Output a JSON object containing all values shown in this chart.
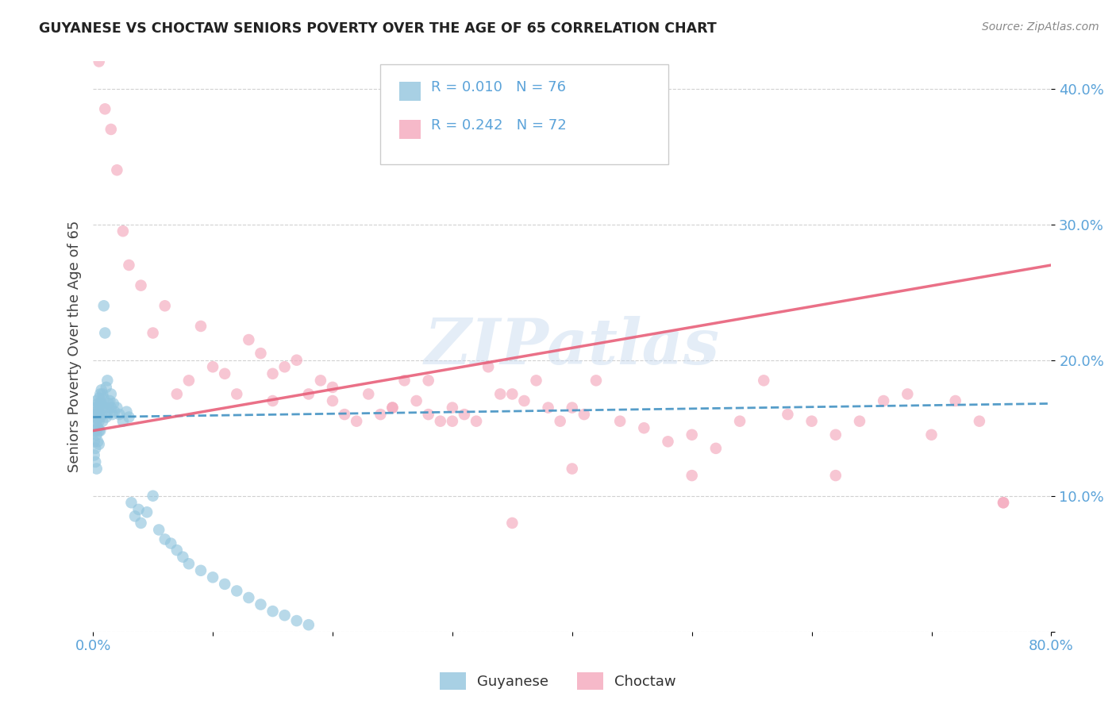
{
  "title": "GUYANESE VS CHOCTAW SENIORS POVERTY OVER THE AGE OF 65 CORRELATION CHART",
  "source": "Source: ZipAtlas.com",
  "ylabel": "Seniors Poverty Over the Age of 65",
  "legend_labels": [
    "Guyanese",
    "Choctaw"
  ],
  "legend_r": [
    "R = 0.010",
    "R = 0.242"
  ],
  "legend_n": [
    "N = 76",
    "N = 72"
  ],
  "blue_color": "#92c5de",
  "pink_color": "#f4a8bc",
  "blue_line_color": "#4393c3",
  "pink_line_color": "#e8607a",
  "axis_label_color": "#5ba3d9",
  "watermark": "ZIPatlas",
  "xmin": 0.0,
  "xmax": 0.8,
  "ymin": 0.0,
  "ymax": 0.42,
  "guyanese_x": [
    0.001,
    0.001,
    0.001,
    0.001,
    0.001,
    0.002,
    0.002,
    0.002,
    0.002,
    0.002,
    0.003,
    0.003,
    0.003,
    0.003,
    0.003,
    0.004,
    0.004,
    0.004,
    0.004,
    0.005,
    0.005,
    0.005,
    0.005,
    0.005,
    0.006,
    0.006,
    0.006,
    0.006,
    0.007,
    0.007,
    0.007,
    0.008,
    0.008,
    0.008,
    0.009,
    0.009,
    0.01,
    0.01,
    0.011,
    0.011,
    0.012,
    0.012,
    0.013,
    0.014,
    0.015,
    0.015,
    0.016,
    0.017,
    0.018,
    0.02,
    0.022,
    0.025,
    0.028,
    0.03,
    0.032,
    0.035,
    0.038,
    0.04,
    0.045,
    0.05,
    0.055,
    0.06,
    0.065,
    0.07,
    0.075,
    0.08,
    0.09,
    0.1,
    0.11,
    0.12,
    0.13,
    0.14,
    0.15,
    0.16,
    0.17,
    0.18
  ],
  "guyanese_y": [
    0.16,
    0.155,
    0.148,
    0.14,
    0.13,
    0.165,
    0.158,
    0.148,
    0.135,
    0.125,
    0.17,
    0.162,
    0.155,
    0.145,
    0.12,
    0.168,
    0.16,
    0.15,
    0.14,
    0.172,
    0.165,
    0.155,
    0.148,
    0.138,
    0.175,
    0.168,
    0.158,
    0.148,
    0.178,
    0.168,
    0.16,
    0.175,
    0.165,
    0.155,
    0.24,
    0.172,
    0.22,
    0.165,
    0.18,
    0.158,
    0.185,
    0.162,
    0.168,
    0.17,
    0.165,
    0.175,
    0.16,
    0.168,
    0.162,
    0.165,
    0.16,
    0.155,
    0.162,
    0.158,
    0.095,
    0.085,
    0.09,
    0.08,
    0.088,
    0.1,
    0.075,
    0.068,
    0.065,
    0.06,
    0.055,
    0.05,
    0.045,
    0.04,
    0.035,
    0.03,
    0.025,
    0.02,
    0.015,
    0.012,
    0.008,
    0.005
  ],
  "choctaw_x": [
    0.005,
    0.01,
    0.015,
    0.02,
    0.025,
    0.03,
    0.04,
    0.05,
    0.06,
    0.07,
    0.08,
    0.09,
    0.1,
    0.11,
    0.12,
    0.13,
    0.14,
    0.15,
    0.16,
    0.17,
    0.18,
    0.19,
    0.2,
    0.21,
    0.22,
    0.23,
    0.24,
    0.25,
    0.26,
    0.27,
    0.28,
    0.29,
    0.3,
    0.31,
    0.32,
    0.33,
    0.34,
    0.35,
    0.36,
    0.37,
    0.38,
    0.39,
    0.4,
    0.41,
    0.42,
    0.44,
    0.46,
    0.48,
    0.5,
    0.52,
    0.54,
    0.56,
    0.58,
    0.6,
    0.62,
    0.64,
    0.66,
    0.68,
    0.7,
    0.72,
    0.74,
    0.76,
    0.35,
    0.28,
    0.15,
    0.2,
    0.25,
    0.3,
    0.4,
    0.5,
    0.62,
    0.76
  ],
  "choctaw_y": [
    0.42,
    0.385,
    0.37,
    0.34,
    0.295,
    0.27,
    0.255,
    0.22,
    0.24,
    0.175,
    0.185,
    0.225,
    0.195,
    0.19,
    0.175,
    0.215,
    0.205,
    0.19,
    0.195,
    0.2,
    0.175,
    0.185,
    0.18,
    0.16,
    0.155,
    0.175,
    0.16,
    0.165,
    0.185,
    0.17,
    0.185,
    0.155,
    0.165,
    0.16,
    0.155,
    0.195,
    0.175,
    0.175,
    0.17,
    0.185,
    0.165,
    0.155,
    0.165,
    0.16,
    0.185,
    0.155,
    0.15,
    0.14,
    0.145,
    0.135,
    0.155,
    0.185,
    0.16,
    0.155,
    0.145,
    0.155,
    0.17,
    0.175,
    0.145,
    0.17,
    0.155,
    0.095,
    0.08,
    0.16,
    0.17,
    0.17,
    0.165,
    0.155,
    0.12,
    0.115,
    0.115,
    0.095
  ]
}
